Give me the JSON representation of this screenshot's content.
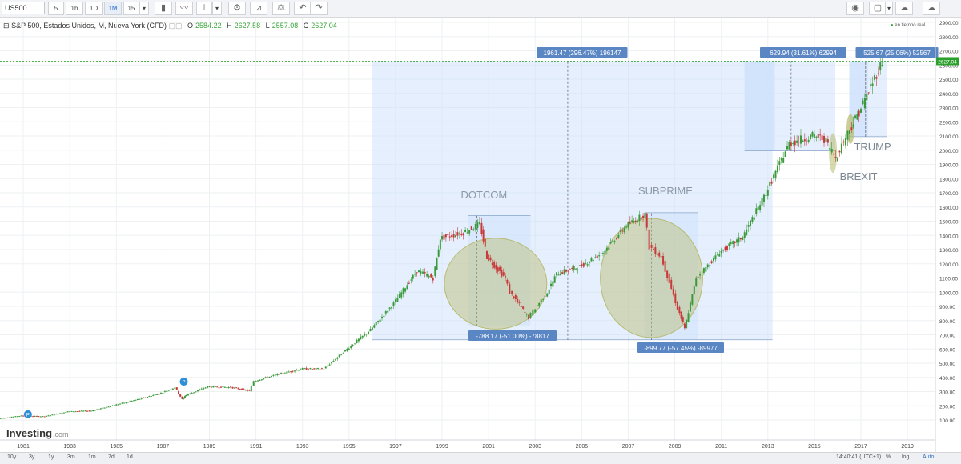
{
  "toolbar": {
    "symbol": "US500",
    "timeframes": [
      "5",
      "1h",
      "1D",
      "1M",
      "15"
    ],
    "active_timeframe": "1M"
  },
  "legend": {
    "title": "S&P 500, Estados Unidos, M, Nueva York (CFD)",
    "o_label": "O",
    "o_value": "2584.22",
    "h_label": "H",
    "h_value": "2627.58",
    "l_label": "L",
    "l_value": "2557.08",
    "c_label": "C",
    "c_value": "2627.04"
  },
  "realtime_label": "en tiempo real",
  "brand": {
    "name": "Investing",
    "suffix": ".com"
  },
  "bottom": {
    "ranges": [
      "10y",
      "3y",
      "1y",
      "3m",
      "1m",
      "7d",
      "1d"
    ],
    "time": "14:40:41 (UTC+1)",
    "percent": "%",
    "log": "log",
    "auto": "Auto"
  },
  "price_axis": {
    "ticks": [
      "2900.00",
      "2800.00",
      "2700.00",
      "2600.00",
      "2500.00",
      "2400.00",
      "2300.00",
      "2200.00",
      "2100.00",
      "2000.00",
      "1900.00",
      "1800.00",
      "1700.00",
      "1600.00",
      "1500.00",
      "1400.00",
      "1300.00",
      "1200.00",
      "1100.00",
      "1000.00",
      "900.00",
      "800.00",
      "700.00",
      "600.00",
      "500.00",
      "400.00",
      "300.00",
      "200.00",
      "100.00"
    ],
    "last_price": "2627.04"
  },
  "time_axis": {
    "ticks": [
      "1981",
      "1983",
      "1985",
      "1987",
      "1989",
      "1991",
      "1993",
      "1995",
      "1997",
      "1999",
      "2001",
      "2003",
      "2005",
      "2007",
      "2009",
      "2011",
      "2013",
      "2015",
      "2017",
      "2019"
    ]
  },
  "annotations": {
    "dotcom": "DOTCOM",
    "subprime": "SUBPRIME",
    "trump": "TRUMP",
    "brexit": "BREXIT",
    "box_main": "1961.47 (296.47%) 196147",
    "box_dotcom": "-788.17 (-51.00%) -78817",
    "box_subprime": "-899.77 (-57.45%) -89977",
    "box_2016": "629.94 (31.61%) 62994",
    "box_trump": "525.67 (25.06%) 52567",
    "marker": "P"
  },
  "colors": {
    "up": "#3a9a3a",
    "down": "#c83a3a",
    "range_fill": "#cfe2fb",
    "label_bg": "#5b86c4",
    "ellipse": "#b7bb6e",
    "marker": "#2e8fd6"
  },
  "chart_data": {
    "type": "candlestick",
    "title": "S&P 500, Estados Unidos, M, Nueva York (CFD)",
    "x": [
      1980,
      1981,
      1982,
      1983,
      1984,
      1985,
      1986,
      1987,
      1987.6,
      1987.9,
      1988,
      1989,
      1990,
      1990.8,
      1991,
      1992,
      1993,
      1994,
      1995,
      1996,
      1997,
      1998,
      1998.7,
      1999,
      2000,
      2000.7,
      2001,
      2001.8,
      2002,
      2002.8,
      2003,
      2003.6,
      2004,
      2005,
      2006,
      2007,
      2007.8,
      2008,
      2008.5,
      2009.2,
      2009.5,
      2010,
      2011,
      2012,
      2013,
      2014,
      2015,
      2015.5,
      2016,
      2016.6,
      2017,
      2017.5,
      2018
    ],
    "close": [
      110,
      130,
      125,
      160,
      165,
      205,
      245,
      290,
      330,
      245,
      270,
      335,
      330,
      305,
      375,
      420,
      460,
      460,
      600,
      735,
      920,
      1150,
      1100,
      1380,
      1420,
      1480,
      1250,
      1100,
      1000,
      820,
      870,
      1000,
      1130,
      1180,
      1280,
      1470,
      1550,
      1320,
      1250,
      890,
      740,
      1100,
      1280,
      1390,
      1700,
      2050,
      2100,
      2080,
      1950,
      2150,
      2270,
      2450,
      2627
    ]
  }
}
